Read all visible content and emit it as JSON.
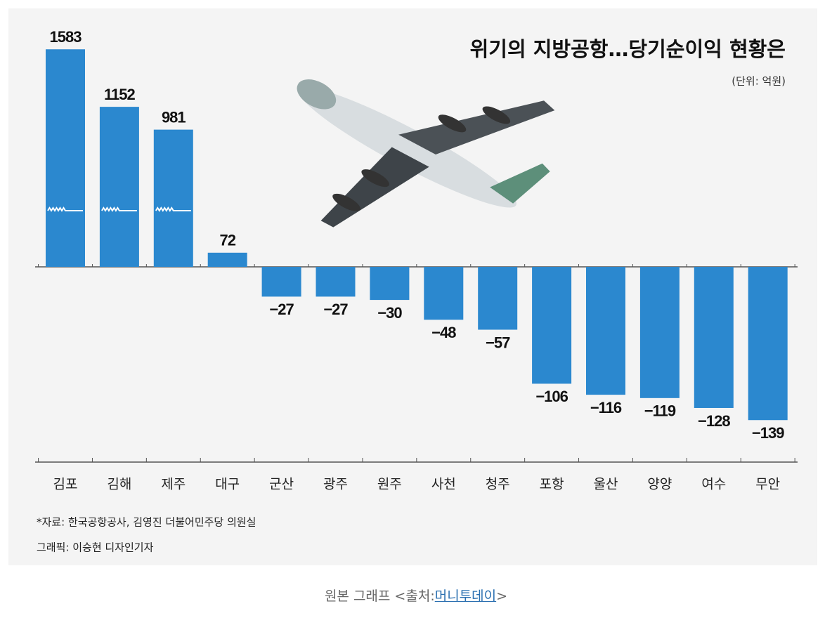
{
  "chart_data": {
    "type": "bar",
    "title": "위기의 지방공항…당기순이익 현황은",
    "unit": "(단위: 억원)",
    "source": "*자료: 한국공항공사, 김영진 더불어민주당 의원실",
    "credit": "그래픽: 이승현 디자인기자",
    "categories": [
      "김포",
      "김해",
      "제주",
      "대구",
      "군산",
      "광주",
      "원주",
      "사천",
      "청주",
      "포항",
      "울산",
      "양양",
      "여수",
      "무안"
    ],
    "values": [
      1583,
      1152,
      981,
      72,
      -27,
      -27,
      -30,
      -48,
      -57,
      -106,
      -116,
      -119,
      -128,
      -139
    ],
    "value_labels": [
      "1583",
      "1152",
      "981",
      "72",
      "−27",
      "−27",
      "−30",
      "−48",
      "−57",
      "−106",
      "−116",
      "−119",
      "−128",
      "−139"
    ],
    "color": "#2b88cf"
  },
  "caption": {
    "prefix": "원본 그래프 <출처:",
    "link": "머니투데이",
    "suffix": ">"
  }
}
